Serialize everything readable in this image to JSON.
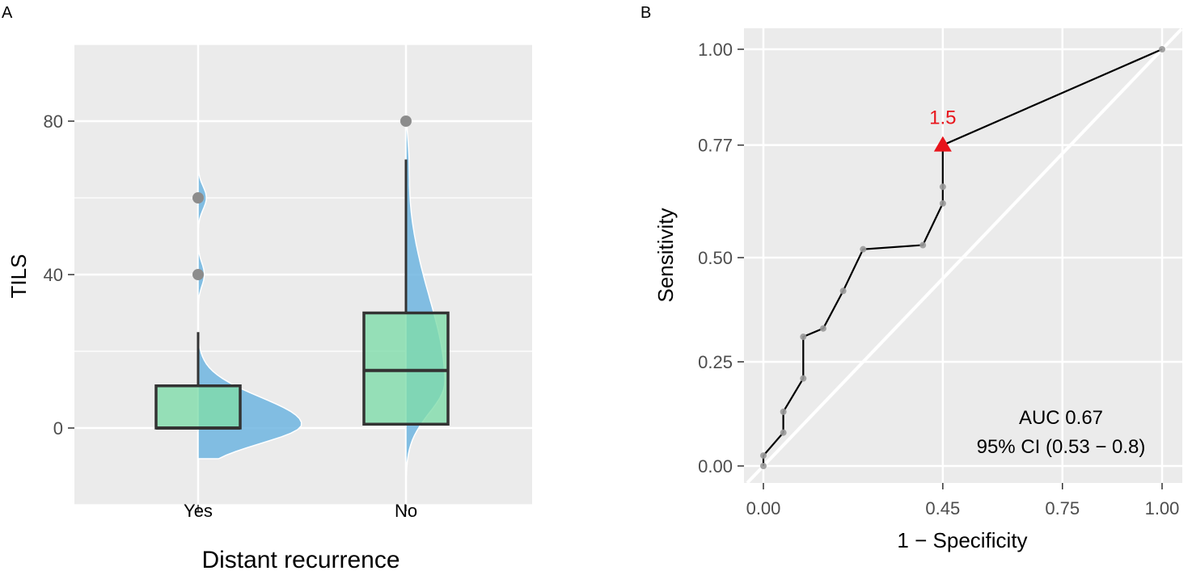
{
  "colors": {
    "panel_bg": "#ebebeb",
    "grid": "#ffffff",
    "box_fill": "#7fdcaa",
    "box_edge": "#333333",
    "violin_fill": "#6fb5e0",
    "point": "#8c8c8c",
    "roc_line": "#000000",
    "cutoff": "#e8141b"
  },
  "chart_data": [
    {
      "panel": "A",
      "type": "box",
      "xlabel": "Distant recurrence",
      "ylabel": "TILS",
      "categories": [
        "Yes",
        "No"
      ],
      "ylim": [
        -20,
        100
      ],
      "y_ticks": [
        0,
        40,
        80
      ],
      "grid": true,
      "groups": [
        {
          "name": "Yes",
          "whisker_low": 0,
          "q1": 0,
          "median": 0,
          "q3": 11,
          "whisker_high": 25,
          "outliers": [
            40,
            60
          ],
          "density_extent": [
            -8,
            68
          ]
        },
        {
          "name": "No",
          "whisker_low": 1,
          "q1": 1,
          "median": 15,
          "q3": 30,
          "whisker_high": 70,
          "outliers": [
            80
          ],
          "density_extent": [
            -15,
            80
          ]
        }
      ]
    },
    {
      "panel": "B",
      "type": "line",
      "xlabel": "1 − Specificity",
      "ylabel": "Sensitivity",
      "xlim": [
        0,
        1
      ],
      "ylim": [
        0,
        1
      ],
      "x_ticks": [
        "0.00",
        "0.45",
        "0.75",
        "1.00"
      ],
      "y_ticks": [
        "0.00",
        "0.25",
        "0.50",
        "0.77",
        "1.00"
      ],
      "grid": true,
      "series": [
        {
          "points": [
            [
              0.0,
              0.0
            ],
            [
              0.0,
              0.025
            ],
            [
              0.05,
              0.08
            ],
            [
              0.05,
              0.13
            ],
            [
              0.1,
              0.21
            ],
            [
              0.1,
              0.31
            ],
            [
              0.15,
              0.33
            ],
            [
              0.2,
              0.42
            ],
            [
              0.25,
              0.52
            ],
            [
              0.4,
              0.53
            ],
            [
              0.45,
              0.63
            ],
            [
              0.45,
              0.67
            ],
            [
              0.45,
              0.77
            ],
            [
              1.0,
              1.0
            ]
          ]
        }
      ],
      "reference_line": [
        [
          0,
          0
        ],
        [
          1,
          1
        ]
      ],
      "cutoff": {
        "x": 0.45,
        "y": 0.77,
        "label": "1.5"
      },
      "annotation": [
        "AUC 0.67",
        "95% CI (0.53 − 0.8)"
      ]
    }
  ]
}
